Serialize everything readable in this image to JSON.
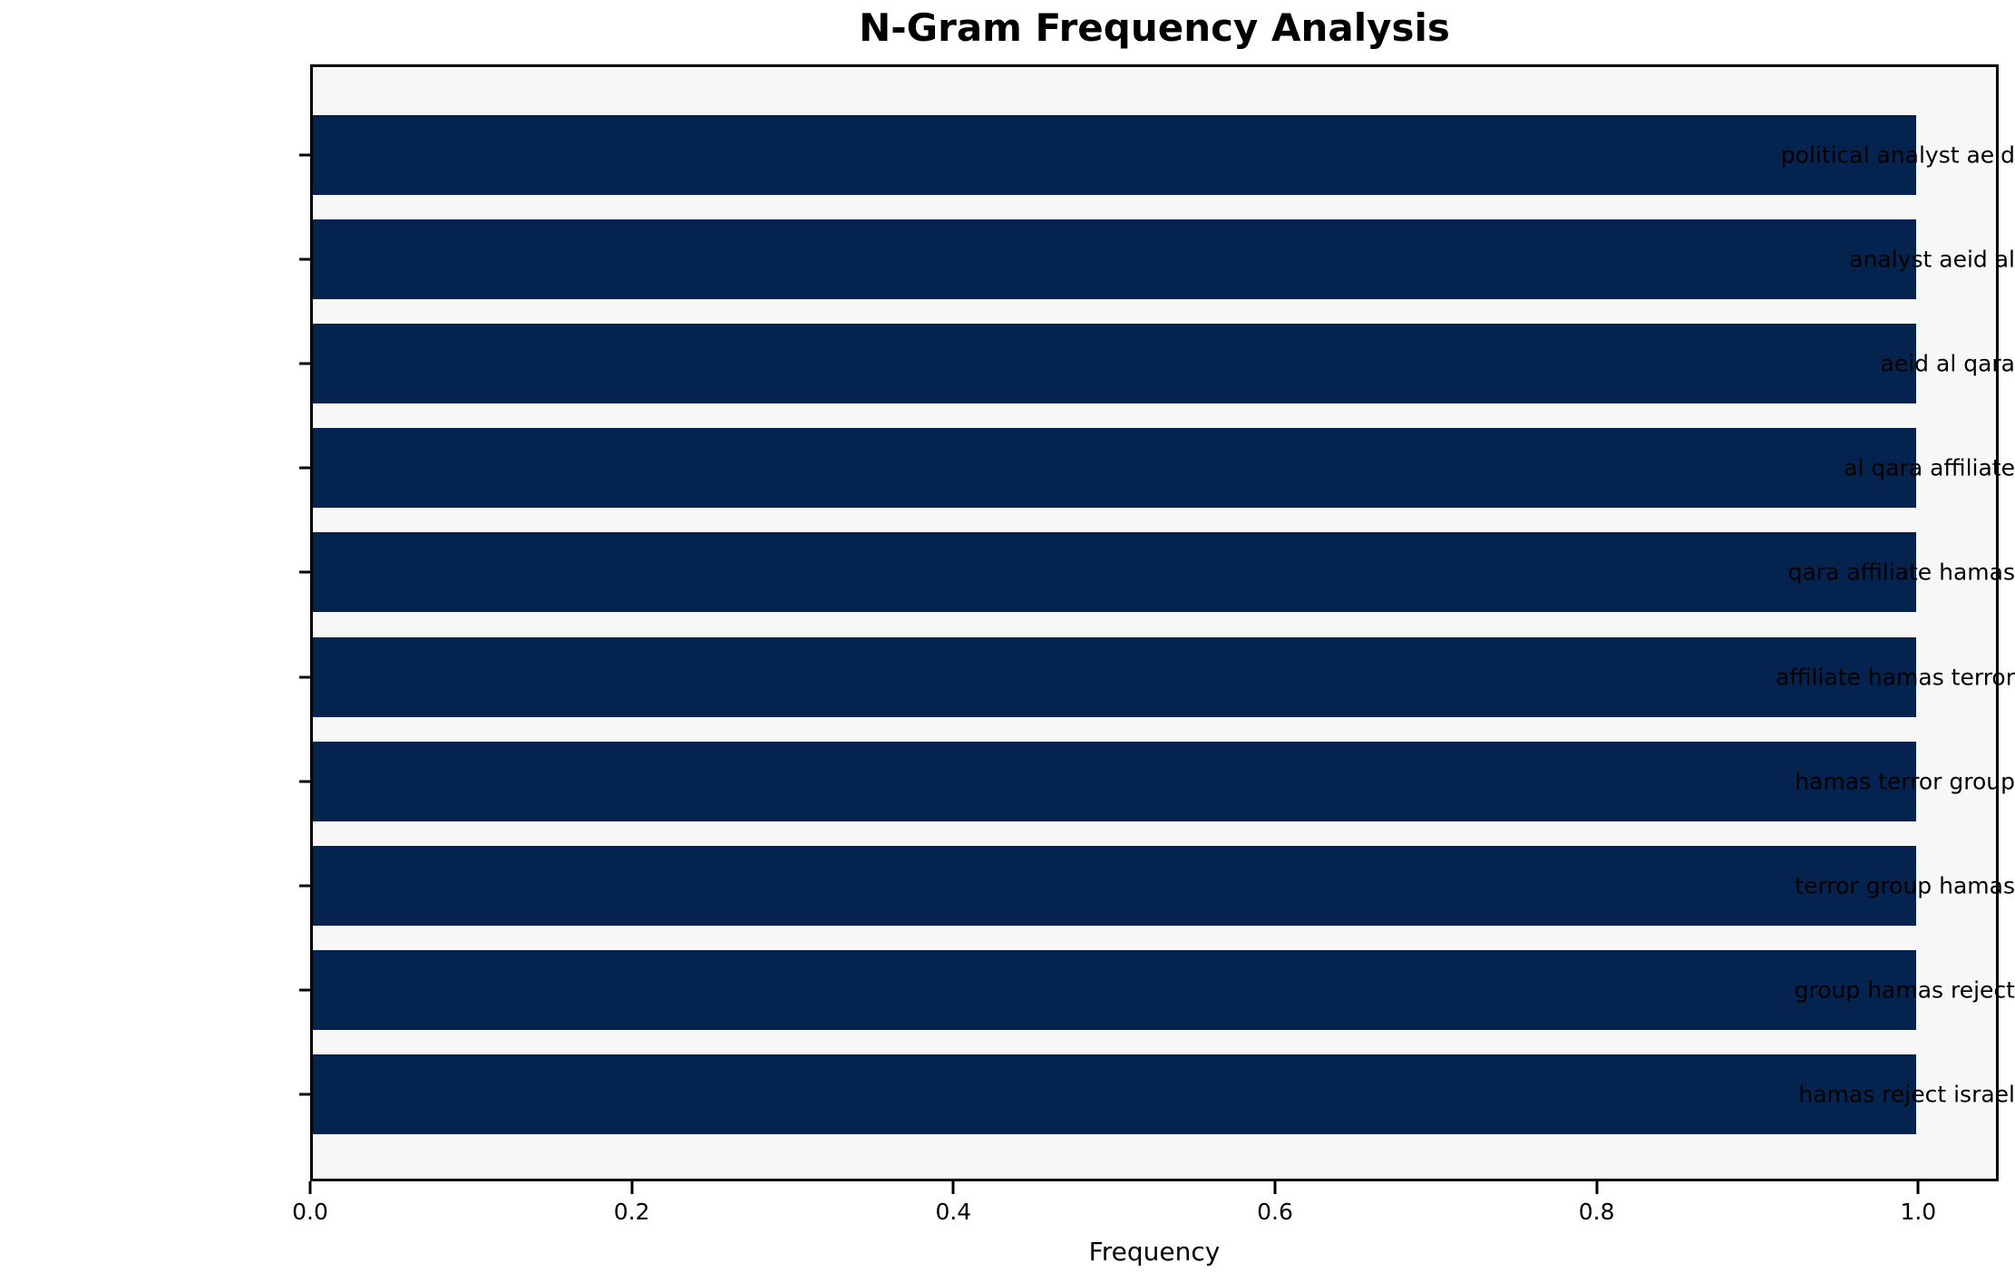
{
  "chart_data": {
    "type": "bar",
    "orientation": "horizontal",
    "title": "N-Gram Frequency Analysis",
    "xlabel": "Frequency",
    "ylabel": "",
    "categories": [
      "political analyst aeid",
      "analyst aeid al",
      "aeid al qara",
      "al qara affiliate",
      "qara affiliate hamas",
      "affiliate hamas terror",
      "hamas terror group",
      "terror group hamas",
      "group hamas reject",
      "hamas reject israel"
    ],
    "values": [
      1.0,
      1.0,
      1.0,
      1.0,
      1.0,
      1.0,
      1.0,
      1.0,
      1.0,
      1.0
    ],
    "x_ticks": [
      0.0,
      0.2,
      0.4,
      0.6,
      0.8,
      1.0
    ],
    "x_tick_labels": [
      "0.0",
      "0.2",
      "0.4",
      "0.6",
      "0.8",
      "1.0"
    ],
    "xlim": [
      0,
      1.05
    ],
    "grid": false,
    "legend": null,
    "colors": {
      "bar": "#04234e",
      "plot_background": "#f7f7f7",
      "figure_background": "#ffffff",
      "axis_spine": "#000000",
      "text": "#000000"
    }
  }
}
